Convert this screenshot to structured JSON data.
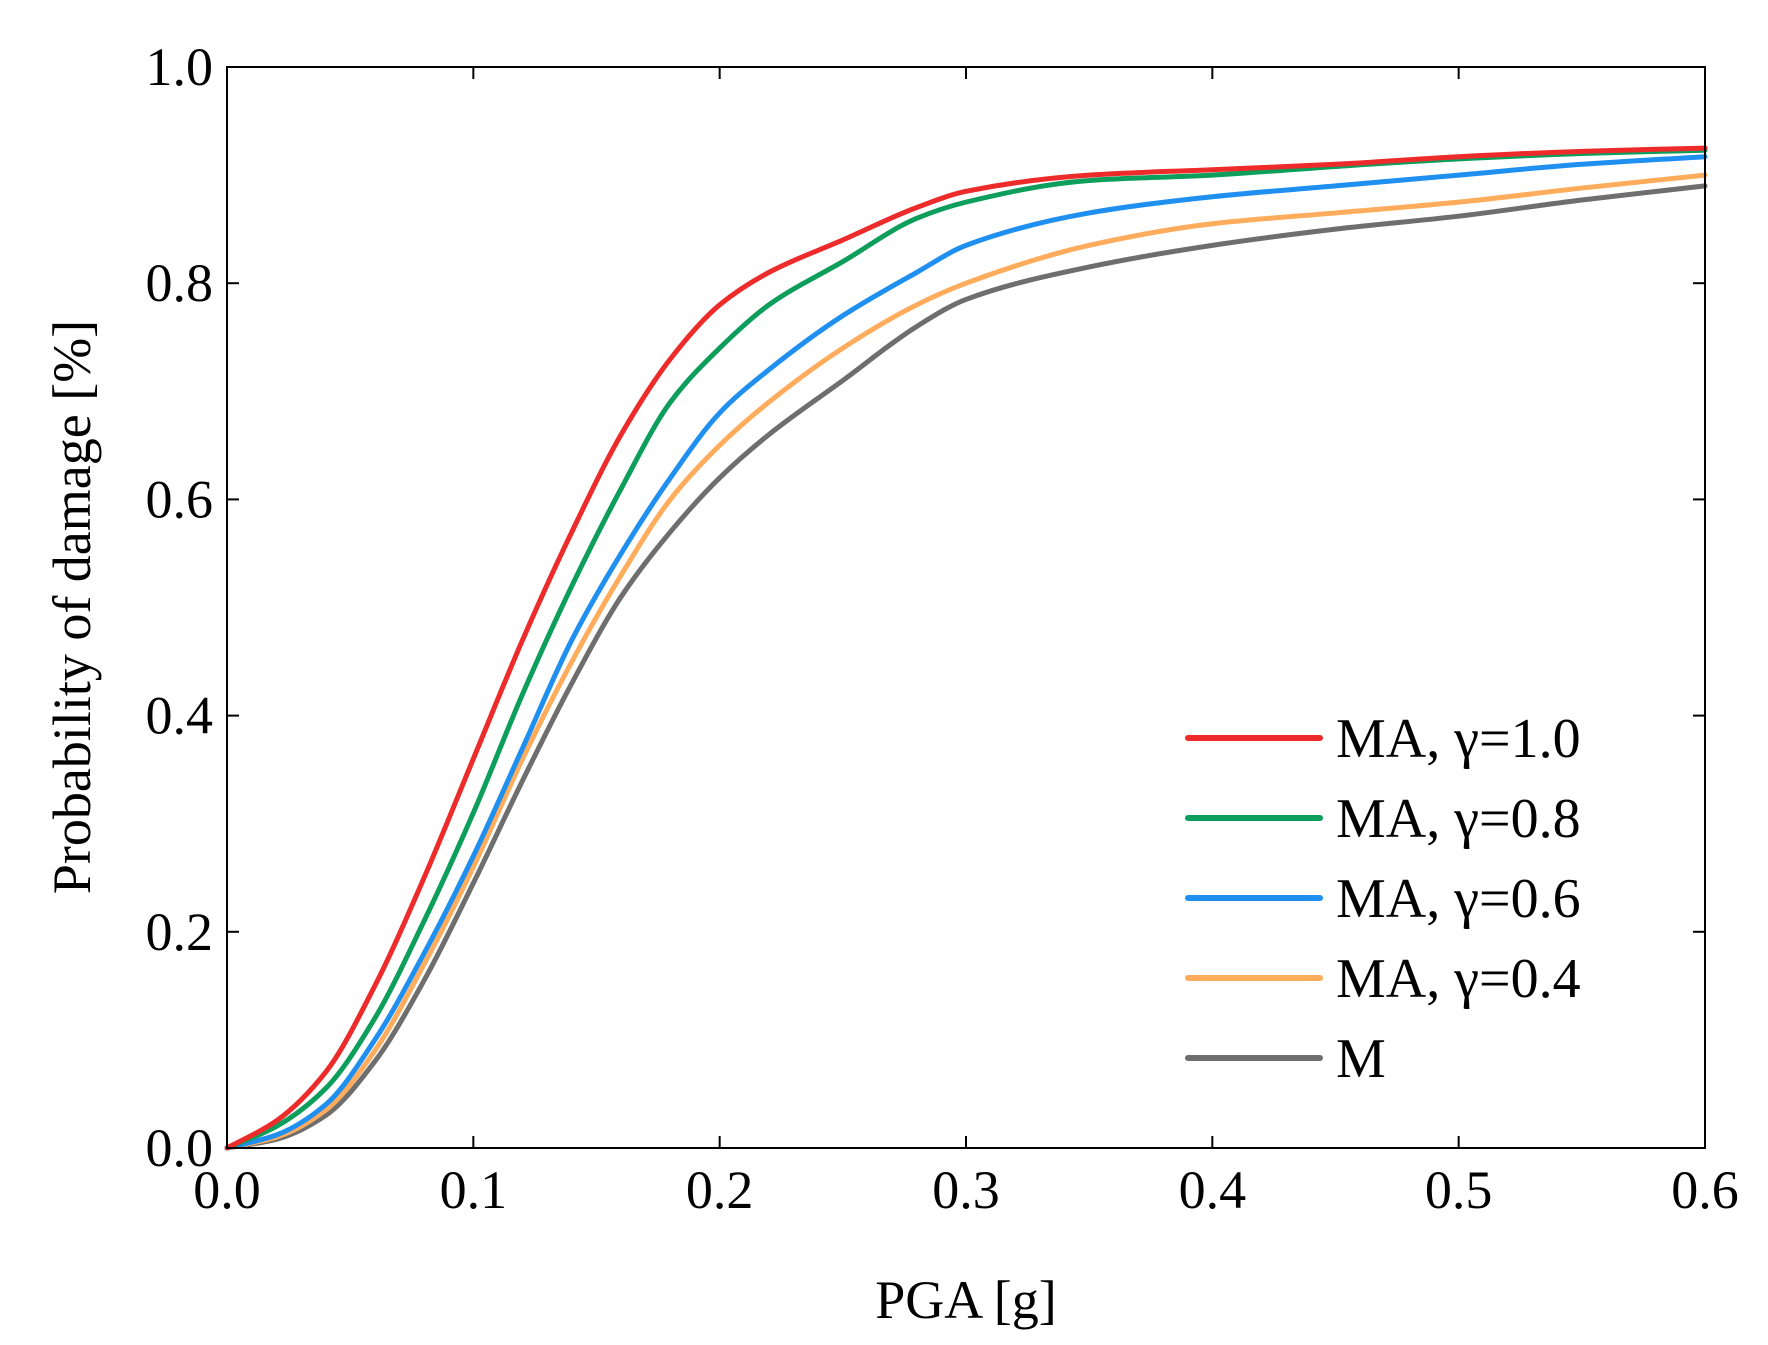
{
  "chart_data": {
    "type": "line",
    "title": "",
    "xlabel": "PGA [g]",
    "ylabel": "Probability of damage [%]",
    "xlim": [
      0.0,
      0.6
    ],
    "ylim": [
      0.0,
      1.0
    ],
    "xticks": [
      "0.0",
      "0.1",
      "0.2",
      "0.3",
      "0.4",
      "0.5",
      "0.6"
    ],
    "yticks": [
      "0.0",
      "0.2",
      "0.4",
      "0.6",
      "0.8",
      "1.0"
    ],
    "grid": false,
    "legend_position": "bottom-right",
    "x": [
      0.0,
      0.02,
      0.04,
      0.06,
      0.08,
      0.1,
      0.12,
      0.14,
      0.16,
      0.18,
      0.2,
      0.22,
      0.25,
      0.28,
      0.3,
      0.35,
      0.4,
      0.45,
      0.5,
      0.55,
      0.6
    ],
    "series": [
      {
        "name": "MA, γ=1.0",
        "color": "#ee2b2b",
        "values": [
          0.0,
          0.025,
          0.07,
          0.15,
          0.25,
          0.36,
          0.47,
          0.57,
          0.66,
          0.73,
          0.78,
          0.81,
          0.84,
          0.87,
          0.885,
          0.9,
          0.905,
          0.91,
          0.917,
          0.922,
          0.925
        ]
      },
      {
        "name": "MA, γ=0.8",
        "color": "#0d9e5c",
        "values": [
          0.0,
          0.02,
          0.055,
          0.12,
          0.21,
          0.31,
          0.42,
          0.52,
          0.61,
          0.69,
          0.74,
          0.78,
          0.82,
          0.86,
          0.875,
          0.895,
          0.9,
          0.908,
          0.915,
          0.92,
          0.923
        ]
      },
      {
        "name": "MA, γ=0.6",
        "color": "#1f8ff0",
        "values": [
          0.0,
          0.012,
          0.04,
          0.1,
          0.18,
          0.27,
          0.37,
          0.47,
          0.55,
          0.62,
          0.68,
          0.72,
          0.77,
          0.81,
          0.835,
          0.865,
          0.88,
          0.89,
          0.9,
          0.91,
          0.917
        ]
      },
      {
        "name": "MA, γ=0.4",
        "color": "#ffad5c",
        "values": [
          0.0,
          0.01,
          0.035,
          0.09,
          0.17,
          0.26,
          0.36,
          0.45,
          0.53,
          0.6,
          0.65,
          0.69,
          0.74,
          0.78,
          0.8,
          0.835,
          0.855,
          0.865,
          0.875,
          0.888,
          0.9
        ]
      },
      {
        "name": "M",
        "color": "#6e6e6e",
        "values": [
          0.0,
          0.008,
          0.03,
          0.08,
          0.155,
          0.245,
          0.34,
          0.43,
          0.51,
          0.57,
          0.62,
          0.66,
          0.71,
          0.76,
          0.785,
          0.815,
          0.835,
          0.85,
          0.862,
          0.877,
          0.89
        ]
      }
    ]
  }
}
